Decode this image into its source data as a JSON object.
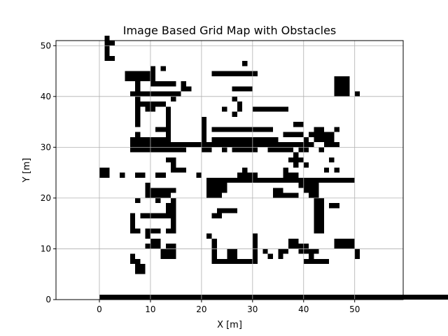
{
  "chart_data": {
    "type": "heatmap",
    "title": "Image Based Grid Map with Obstacles",
    "xlabel": "X [m]",
    "ylabel": "Y [m]",
    "xlim": [
      -8.5,
      59.5
    ],
    "ylim": [
      0,
      51
    ],
    "xticks": [
      0,
      10,
      20,
      30,
      40,
      50
    ],
    "yticks": [
      0,
      10,
      20,
      30,
      40,
      50
    ],
    "grid": true,
    "colors": {
      "obstacle": "#000000",
      "free": "#ffffff",
      "grid": "#b0b0b0"
    },
    "cell_size": 1,
    "obstacle_runs": [
      [
        0,
        0,
        51
      ],
      [
        50,
        0,
        51
      ],
      [
        51,
        0,
        51
      ],
      [
        1,
        50,
        1
      ],
      [
        1,
        47,
        2
      ],
      [
        5,
        43,
        6
      ],
      [
        5,
        44,
        6
      ],
      [
        6,
        40,
        8
      ],
      [
        8,
        38,
        5
      ],
      [
        10,
        42,
        5
      ],
      [
        12,
        40,
        4
      ],
      [
        16,
        41,
        2
      ],
      [
        22,
        44,
        5
      ],
      [
        26,
        44,
        5
      ],
      [
        26,
        41,
        4
      ],
      [
        22,
        33,
        6
      ],
      [
        22,
        31,
        6
      ],
      [
        20,
        30,
        12
      ],
      [
        28,
        33,
        6
      ],
      [
        28,
        31,
        6
      ],
      [
        28,
        29,
        3
      ],
      [
        6,
        31,
        8
      ],
      [
        7,
        32,
        1
      ],
      [
        30,
        37,
        3
      ],
      [
        33,
        37,
        4
      ],
      [
        35,
        30,
        7
      ],
      [
        36,
        32,
        4
      ],
      [
        38,
        34,
        2
      ],
      [
        42,
        31,
        4
      ],
      [
        39,
        29,
        2
      ],
      [
        46,
        43,
        3
      ],
      [
        46,
        42,
        3
      ],
      [
        46,
        41,
        3
      ],
      [
        46,
        40,
        3
      ],
      [
        50,
        40,
        1
      ],
      [
        46,
        33,
        1
      ],
      [
        45,
        30,
        2
      ],
      [
        46,
        25,
        1
      ],
      [
        0,
        25,
        2
      ],
      [
        0,
        24,
        2
      ],
      [
        4,
        24,
        1
      ],
      [
        7,
        24,
        2
      ],
      [
        11,
        24,
        2
      ],
      [
        19,
        24,
        1
      ],
      [
        28,
        25,
        1
      ],
      [
        29,
        24,
        2
      ],
      [
        27,
        24,
        4
      ],
      [
        21,
        23,
        29
      ],
      [
        21,
        22,
        4
      ],
      [
        21,
        21,
        4
      ],
      [
        21,
        20,
        3
      ],
      [
        34,
        21,
        2
      ],
      [
        34,
        20,
        5
      ],
      [
        39,
        22,
        4
      ],
      [
        40,
        21,
        3
      ],
      [
        41,
        20,
        2
      ],
      [
        42,
        19,
        2
      ],
      [
        42,
        18,
        2
      ],
      [
        42,
        17,
        2
      ],
      [
        42,
        16,
        2
      ],
      [
        42,
        15,
        2
      ],
      [
        42,
        14,
        2
      ],
      [
        42,
        13,
        2
      ],
      [
        45,
        18,
        2
      ],
      [
        9,
        22,
        1
      ],
      [
        9,
        21,
        6
      ],
      [
        9,
        20,
        5
      ],
      [
        7,
        19,
        1
      ],
      [
        11,
        19,
        1
      ],
      [
        14,
        19,
        1
      ],
      [
        13,
        18,
        2
      ],
      [
        13,
        17,
        2
      ],
      [
        23,
        17,
        4
      ],
      [
        22,
        16,
        2
      ],
      [
        6,
        16,
        1
      ],
      [
        6,
        15,
        1
      ],
      [
        6,
        14,
        1
      ],
      [
        6,
        13,
        2
      ],
      [
        8,
        16,
        7
      ],
      [
        14,
        15,
        1
      ],
      [
        14,
        14,
        1
      ],
      [
        9,
        13,
        3
      ],
      [
        13,
        13,
        2
      ],
      [
        9,
        12,
        1
      ],
      [
        10,
        11,
        2
      ],
      [
        9,
        10,
        3
      ],
      [
        13,
        10,
        2
      ],
      [
        12,
        9,
        3
      ],
      [
        12,
        8,
        3
      ],
      [
        6,
        8,
        1
      ],
      [
        6,
        7,
        2
      ],
      [
        7,
        6,
        2
      ],
      [
        7,
        5,
        2
      ],
      [
        21,
        12,
        1
      ],
      [
        22,
        11,
        1
      ],
      [
        22,
        10,
        1
      ],
      [
        22,
        9,
        1
      ],
      [
        22,
        8,
        1
      ],
      [
        22,
        7,
        9
      ],
      [
        25,
        9,
        2
      ],
      [
        25,
        8,
        2
      ],
      [
        30,
        12,
        1
      ],
      [
        30,
        11,
        1
      ],
      [
        30,
        10,
        1
      ],
      [
        30,
        9,
        1
      ],
      [
        30,
        8,
        1
      ],
      [
        32,
        9,
        1
      ],
      [
        33,
        8,
        1
      ],
      [
        37,
        11,
        2
      ],
      [
        37,
        10,
        4
      ],
      [
        39,
        9,
        4
      ],
      [
        41,
        8,
        1
      ],
      [
        40,
        7,
        5
      ],
      [
        35,
        9,
        2
      ],
      [
        35,
        8,
        1
      ],
      [
        46,
        11,
        2
      ],
      [
        46,
        10,
        2
      ],
      [
        48,
        11,
        2
      ],
      [
        48,
        10,
        2
      ],
      [
        50,
        9,
        1
      ],
      [
        50,
        8,
        1
      ],
      [
        7,
        43,
        1
      ],
      [
        7,
        42,
        1
      ],
      [
        7,
        41,
        1
      ],
      [
        7,
        40,
        1
      ],
      [
        7,
        39,
        1
      ],
      [
        7,
        38,
        1
      ],
      [
        7,
        37,
        1
      ],
      [
        7,
        36,
        1
      ],
      [
        7,
        35,
        1
      ],
      [
        7,
        34,
        1
      ],
      [
        9,
        37,
        2
      ],
      [
        9,
        31,
        1
      ],
      [
        13,
        37,
        1
      ],
      [
        13,
        36,
        1
      ],
      [
        13,
        35,
        1
      ],
      [
        13,
        34,
        1
      ],
      [
        13,
        33,
        1
      ],
      [
        13,
        32,
        1
      ],
      [
        11,
        33,
        3
      ],
      [
        14,
        30,
        1
      ],
      [
        13,
        27,
        2
      ],
      [
        14,
        26,
        1
      ],
      [
        14,
        29,
        3
      ],
      [
        14,
        25,
        2
      ],
      [
        16,
        25,
        1
      ],
      [
        6,
        30,
        15
      ],
      [
        6,
        29,
        9
      ],
      [
        10,
        45,
        1
      ],
      [
        12,
        45,
        1
      ],
      [
        1,
        48,
        1
      ],
      [
        1,
        49,
        1
      ],
      [
        1,
        51,
        1
      ],
      [
        1,
        50,
        2
      ],
      [
        16,
        42,
        1
      ],
      [
        14,
        39,
        1
      ],
      [
        28,
        46,
        1
      ],
      [
        24,
        37,
        1
      ],
      [
        27,
        37,
        1
      ],
      [
        32,
        37,
        1
      ],
      [
        26,
        39,
        1
      ],
      [
        27,
        38,
        1
      ],
      [
        26,
        36,
        1
      ],
      [
        18,
        30,
        1
      ],
      [
        16,
        29,
        1
      ],
      [
        20,
        35,
        1
      ],
      [
        20,
        34,
        1
      ],
      [
        20,
        33,
        1
      ],
      [
        20,
        32,
        1
      ],
      [
        20,
        31,
        1
      ],
      [
        20,
        29,
        2
      ],
      [
        24,
        29,
        1
      ],
      [
        26,
        29,
        2
      ],
      [
        31,
        30,
        4
      ],
      [
        34,
        31,
        1
      ],
      [
        33,
        29,
        4
      ],
      [
        40,
        31,
        1
      ],
      [
        40,
        29,
        1
      ],
      [
        36,
        29,
        2
      ],
      [
        38,
        28,
        1
      ],
      [
        37,
        27,
        3
      ],
      [
        38,
        26,
        1
      ],
      [
        40,
        26,
        1
      ],
      [
        44,
        25,
        1
      ],
      [
        45,
        23,
        1
      ],
      [
        45,
        27,
        1
      ],
      [
        36,
        24,
        1
      ],
      [
        36,
        25,
        1
      ],
      [
        37,
        24,
        2
      ],
      [
        36,
        23,
        1
      ],
      [
        38,
        23,
        1
      ],
      [
        44,
        32,
        2
      ],
      [
        44,
        30,
        1
      ],
      [
        43,
        29,
        1
      ],
      [
        41,
        32,
        3
      ],
      [
        42,
        33,
        2
      ]
    ]
  }
}
